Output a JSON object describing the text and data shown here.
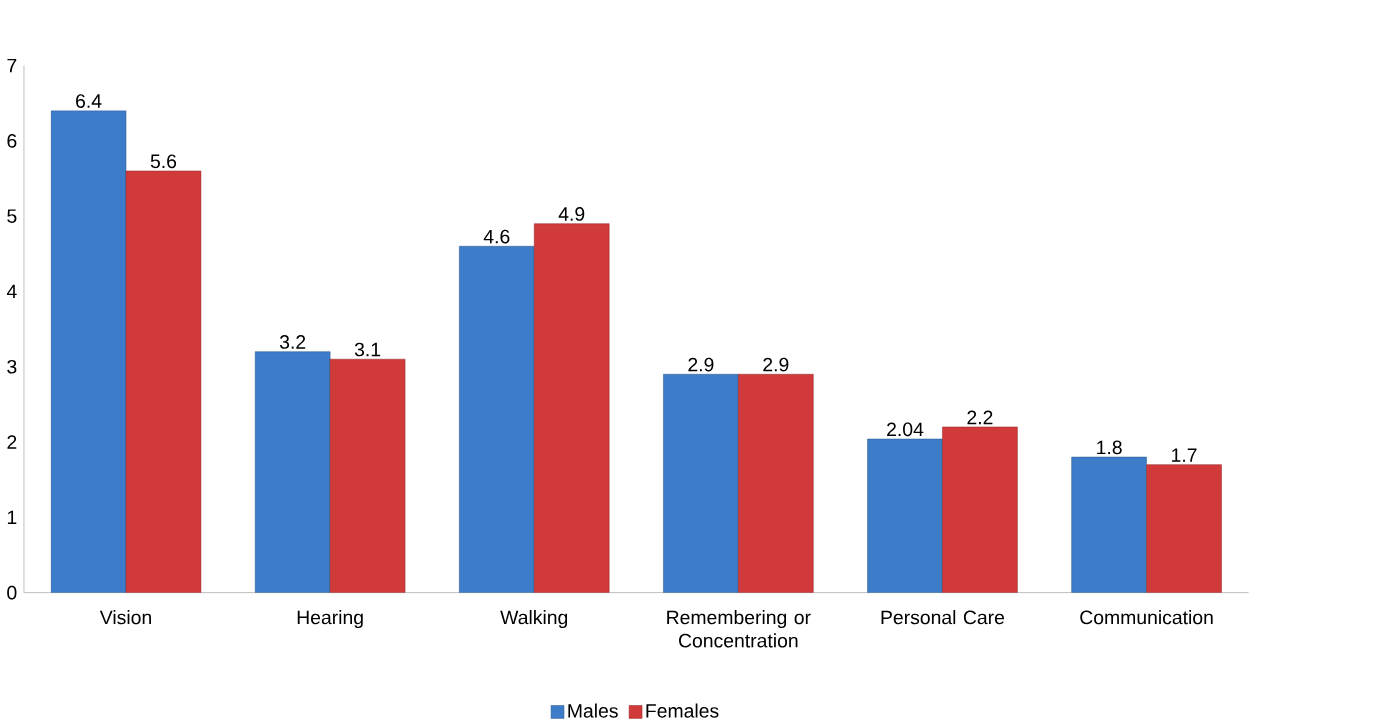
{
  "chart_data": {
    "type": "bar",
    "categories": [
      "Vision",
      "Hearing",
      "Walking",
      "Remembering or Concentration",
      "Personal Care",
      "Communication"
    ],
    "series": [
      {
        "name": "Males",
        "color": "#3d7cc9",
        "values": [
          6.4,
          3.2,
          4.6,
          2.9,
          2.04,
          1.8
        ],
        "value_labels": [
          "6.4",
          "3.2",
          "4.6",
          "2.9",
          "2.04",
          "1.8"
        ]
      },
      {
        "name": "Females",
        "color": "#d03a3a",
        "values": [
          5.6,
          3.1,
          4.9,
          2.9,
          2.2,
          1.7
        ],
        "value_labels": [
          "5.6",
          "3.1",
          "4.9",
          "2.9",
          "2.2",
          "1.7"
        ]
      }
    ],
    "ylim": [
      0,
      7
    ],
    "yticks": [
      0,
      1,
      2,
      3,
      4,
      5,
      6,
      7
    ],
    "grid": false,
    "legend": "bottom"
  }
}
